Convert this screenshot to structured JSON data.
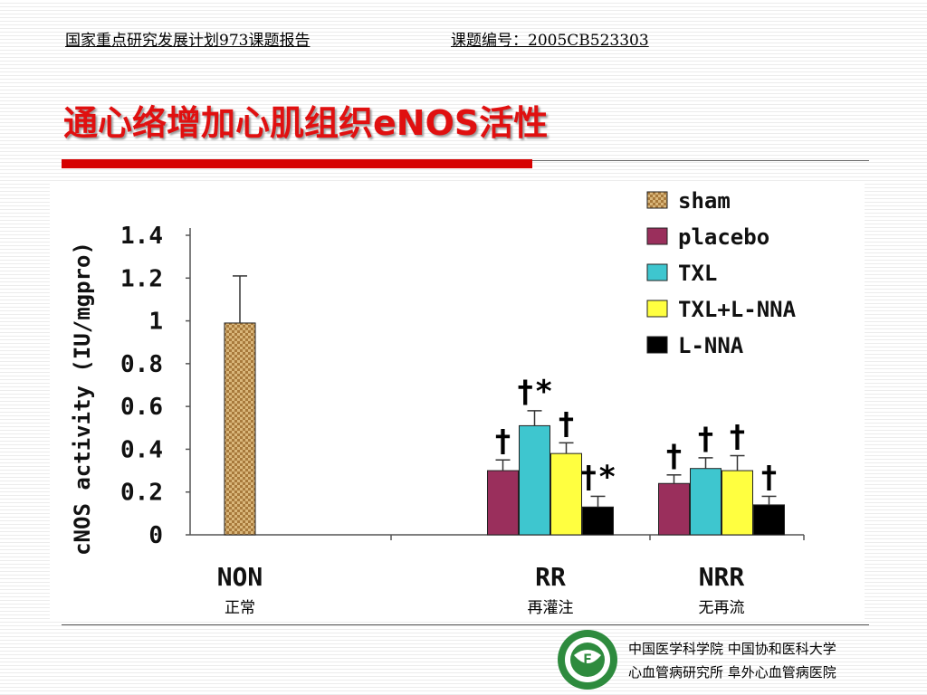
{
  "header": {
    "project": "国家重点研究发展计划973课题报告",
    "code": "课题编号：2005CB523303"
  },
  "title": "通心络增加心肌组织eNOS活性",
  "chart_data": {
    "type": "bar",
    "ylabel": "cNOS activity (IU/mgpro)",
    "ylim": [
      0,
      1.4
    ],
    "ytick_labels": [
      "0",
      "0.2",
      "0.4",
      "0.6",
      "0.8",
      "1",
      "1.2",
      "1.4"
    ],
    "categories": [
      "NON",
      "RR",
      "NRR"
    ],
    "category_sublabels": [
      "正常",
      "再灌注",
      "无再流"
    ],
    "legend_position": "top-right",
    "series": [
      {
        "name": "sham",
        "color": "#c8a060",
        "values": [
          0.99,
          null,
          null
        ],
        "errors": [
          0.22,
          null,
          null
        ],
        "marks": [
          "",
          "",
          ""
        ]
      },
      {
        "name": "placebo",
        "color": "#9a2f5c",
        "values": [
          null,
          0.3,
          0.24
        ],
        "errors": [
          null,
          0.05,
          0.04
        ],
        "marks": [
          "",
          "†",
          "†"
        ]
      },
      {
        "name": "TXL",
        "color": "#3ec6cf",
        "values": [
          null,
          0.51,
          0.31
        ],
        "errors": [
          null,
          0.07,
          0.05
        ],
        "marks": [
          "",
          "†*",
          "†"
        ]
      },
      {
        "name": "TXL+L-NNA",
        "color": "#ffff40",
        "values": [
          null,
          0.38,
          0.3
        ],
        "errors": [
          null,
          0.05,
          0.07
        ],
        "marks": [
          "",
          "†",
          "†"
        ]
      },
      {
        "name": "L-NNA",
        "color": "#000000",
        "values": [
          null,
          0.13,
          0.14
        ],
        "errors": [
          null,
          0.05,
          0.04
        ],
        "marks": [
          "",
          "†*",
          "†"
        ]
      }
    ]
  },
  "footer": {
    "line1": "中国医学科学院  中国协和医科大学",
    "line2": "心血管病研究所  阜外心血管病医院"
  },
  "logo": {
    "center_text": "F"
  }
}
